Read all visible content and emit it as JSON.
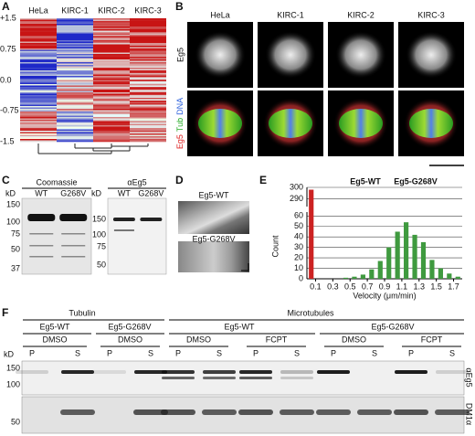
{
  "panel_labels": [
    "A",
    "B",
    "C",
    "D",
    "E",
    "F"
  ],
  "panel_a": {
    "columns": [
      "HeLa",
      "KIRC-1",
      "KIRC-2",
      "KIRC-3"
    ],
    "scale_ticks": [
      "+1.5",
      "0.75",
      "0.0",
      "-0.75",
      "-1.5"
    ]
  },
  "panel_b": {
    "columns": [
      "HeLa",
      "KIRC-1",
      "KIRC-2",
      "KIRC-3"
    ],
    "row_1_label": "Eg5",
    "row_2_label": [
      "Eg5",
      "Tub",
      "DNA"
    ]
  },
  "panel_c": {
    "unit": "kD",
    "blots": [
      {
        "title": "Coomassie",
        "lanes": [
          "WT",
          "G268V"
        ],
        "markers": [
          "150",
          "100",
          "75",
          "50",
          "37"
        ]
      },
      {
        "title": "αEg5",
        "lanes": [
          "WT",
          "G268V"
        ],
        "markers": [
          "150",
          "100",
          "75",
          "50"
        ]
      }
    ]
  },
  "panel_d": {
    "labels": [
      "Eg5-WT",
      "Eg5-G268V"
    ]
  },
  "chart_data": {
    "type": "histogram",
    "xlabel": "Velocity (μm/min)",
    "ylabel": "Count",
    "bins": [
      0,
      0.1,
      0.2,
      0.3,
      0.4,
      0.5,
      0.6,
      0.7,
      0.8,
      0.9,
      1.0,
      1.1,
      1.2,
      1.3,
      1.4,
      1.5,
      1.6,
      1.7,
      1.8
    ],
    "series": [
      {
        "name": "Eg5-WT",
        "color": "#3f9a3f",
        "values": [
          0,
          0,
          0,
          0,
          1,
          2,
          4,
          9,
          17,
          30,
          45,
          54,
          42,
          35,
          18,
          10,
          5,
          2
        ]
      },
      {
        "name": "Eg5-G268V",
        "color": "#cc2222",
        "values": [
          298,
          0,
          0,
          0,
          0,
          0,
          0,
          0,
          0,
          0,
          0,
          0,
          0,
          0,
          0,
          0,
          0,
          0
        ]
      }
    ],
    "xlim": [
      0,
      1.8
    ],
    "xticks": [
      0.1,
      0.3,
      0.5,
      0.7,
      0.9,
      1.1,
      1.3,
      1.5,
      1.7
    ],
    "ylim": [
      0,
      300
    ],
    "y_break": [
      62,
      285
    ],
    "yticks": [
      0,
      10,
      20,
      30,
      40,
      50,
      60,
      290,
      300
    ],
    "grid": true
  },
  "panel_f": {
    "groups": [
      "Tubulin",
      "Microtubules"
    ],
    "proteins": [
      "Eg5-WT",
      "Eg5-G268V",
      "Eg5-WT",
      "Eg5-G268V"
    ],
    "treatments": [
      "DMSO",
      "DMSO",
      "DMSO",
      "FCPT",
      "DMSO",
      "FCPT"
    ],
    "fractions": [
      "P",
      "S"
    ],
    "unit": "kD",
    "markers": [
      "150",
      "100",
      "50"
    ],
    "blots": [
      "αEg5",
      "DM1α"
    ]
  }
}
